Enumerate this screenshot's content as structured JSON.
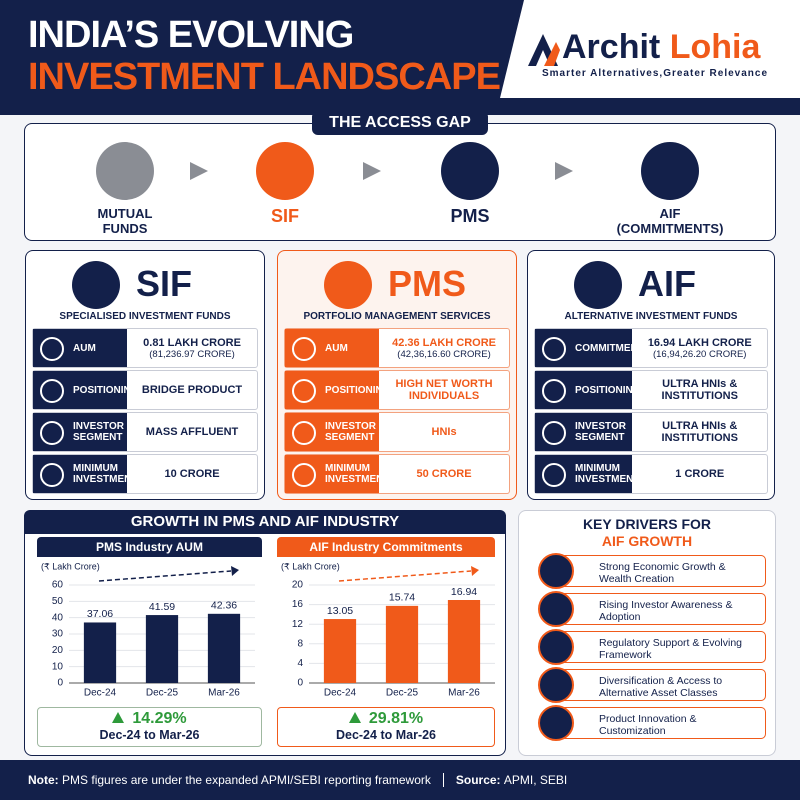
{
  "header": {
    "title_line1": "INDIA’S EVOLVING",
    "title_line2": "INVESTMENT LANDSCAPE",
    "brand_first": "Archit",
    "brand_last": "Lohia",
    "tagline": "Smarter Alternatives,Greater Relevance"
  },
  "access_gap": {
    "title": "THE ACCESS GAP",
    "steps": [
      "MUTUAL FUNDS",
      "SIF",
      "PMS",
      "AIF (COMMITMENTS)"
    ]
  },
  "cards": [
    {
      "title": "SIF",
      "subtitle": "SPECIALISED INVESTMENT FUNDS",
      "rows": [
        {
          "label": "AUM",
          "value": "0.81 LAKH CRORE",
          "detail": "(81,236.97 CRORE)"
        },
        {
          "label": "POSITIONING",
          "value": "BRIDGE PRODUCT"
        },
        {
          "label": "INVESTOR SEGMENT",
          "value": "MASS AFFLUENT"
        },
        {
          "label": "MINIMUM INVESTMENT",
          "value": "10 CRORE"
        }
      ]
    },
    {
      "title": "PMS",
      "subtitle": "PORTFOLIO MANAGEMENT SERVICES",
      "rows": [
        {
          "label": "AUM",
          "value": "42.36 LAKH CRORE",
          "detail": "(42,36,16.60 CRORE)"
        },
        {
          "label": "POSITIONING",
          "value": "HIGH NET WORTH INDIVIDUALS"
        },
        {
          "label": "INVESTOR SEGMENT",
          "value": "HNIs"
        },
        {
          "label": "MINIMUM INVESTMENT",
          "value": "50 CRORE"
        }
      ]
    },
    {
      "title": "AIF",
      "subtitle": "ALTERNATIVE INVESTMENT FUNDS",
      "rows": [
        {
          "label": "COMMITMENTS",
          "value": "16.94 LAKH CRORE",
          "detail": "(16,94,26.20 CRORE)"
        },
        {
          "label": "POSITIONING",
          "value": "ULTRA HNIs & INSTITUTIONS"
        },
        {
          "label": "INVESTOR SEGMENT",
          "value": "ULTRA HNIs & INSTITUTIONS"
        },
        {
          "label": "MINIMUM INVESTMENT",
          "value": "1 CRORE"
        }
      ]
    }
  ],
  "growth": {
    "title": "GROWTH IN PMS AND AIF INDUSTRY",
    "summaries": [
      {
        "change": "14.29%",
        "period": "Dec-24 to Mar-26"
      },
      {
        "change": "29.81%",
        "period": "Dec-24 to Mar-26"
      }
    ]
  },
  "drivers": {
    "title_line1": "KEY DRIVERS FOR",
    "title_line2": "AIF GROWTH",
    "items": [
      "Strong Economic Growth & Wealth Creation",
      "Rising Investor Awareness & Adoption",
      "Regulatory Support & Evolving Framework",
      "Diversification & Access to Alternative Asset Classes",
      "Product Innovation & Customization"
    ]
  },
  "footer": {
    "note_label": "Note:",
    "note": "PMS figures are under the expanded APMI/SEBI reporting framework",
    "source_label": "Source:",
    "source": "APMI, SEBI"
  },
  "chart_data": [
    {
      "type": "bar",
      "title": "PMS Industry AUM",
      "y_label": "(₹ Lakh Crore)",
      "categories": [
        "Dec-24",
        "Dec-25",
        "Mar-26"
      ],
      "values": [
        37.06,
        41.59,
        42.36
      ],
      "color": "#13204a",
      "ylim": [
        0,
        60
      ],
      "yticks": [
        0,
        10,
        20,
        30,
        40,
        50,
        60
      ]
    },
    {
      "type": "bar",
      "title": "AIF Industry Commitments",
      "y_label": "(₹ Lakh Crore)",
      "categories": [
        "Dec-24",
        "Dec-25",
        "Mar-26"
      ],
      "values": [
        13.05,
        15.74,
        16.94
      ],
      "color": "#f05a1a",
      "ylim": [
        0,
        20
      ],
      "yticks": [
        0,
        4,
        8,
        12,
        16,
        20
      ]
    }
  ]
}
